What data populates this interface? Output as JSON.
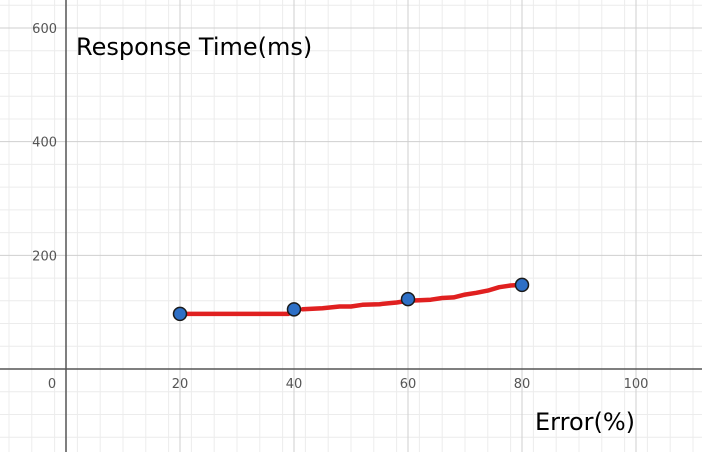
{
  "chart_data": {
    "type": "line",
    "title": "",
    "xlabel": "Error(%)",
    "ylabel": "Response Time(ms)",
    "xlim": [
      -10,
      112
    ],
    "ylim": [
      -145,
      645
    ],
    "grid": true,
    "x_ticks": [
      0,
      20,
      40,
      60,
      80,
      100
    ],
    "y_ticks": [
      200,
      400,
      600
    ],
    "x_tick_labels": [
      "0",
      "20",
      "40",
      "60",
      "80",
      "100"
    ],
    "y_tick_labels": [
      "200",
      "400",
      "600"
    ],
    "series": [
      {
        "color": "#e02020",
        "x": [
          20,
          40,
          60,
          80
        ],
        "y": [
          97,
          105,
          123,
          148
        ],
        "curve": [
          [
            20,
            97
          ],
          [
            25,
            97
          ],
          [
            30,
            97
          ],
          [
            35,
            97
          ],
          [
            39,
            97
          ],
          [
            41.5,
            105
          ],
          [
            45,
            107
          ],
          [
            48,
            110
          ],
          [
            50,
            110
          ],
          [
            52,
            113
          ],
          [
            55,
            114
          ],
          [
            58,
            117
          ],
          [
            60,
            120
          ],
          [
            62,
            121
          ],
          [
            64,
            122
          ],
          [
            66,
            125
          ],
          [
            68,
            126
          ],
          [
            70,
            131
          ],
          [
            72,
            134
          ],
          [
            74,
            138
          ],
          [
            76,
            144
          ],
          [
            78,
            147
          ],
          [
            80,
            148
          ]
        ]
      }
    ],
    "point_color": "#2d6fc6"
  }
}
